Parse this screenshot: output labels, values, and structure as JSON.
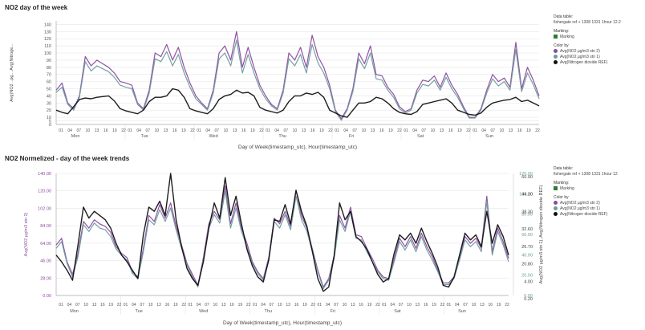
{
  "chart_data": [
    {
      "type": "line",
      "title": "NO2 day of the week",
      "xlabel": "Day of Week(timestamp_utc), Hour(timestamp_utc)",
      "ylabel": "Avg(NO2 ..pg... Avg(Nitroge...",
      "ylim": [
        0,
        145
      ],
      "yticks": [
        0,
        5,
        10,
        20,
        30,
        40,
        50,
        60,
        70,
        80,
        90,
        100,
        110,
        120,
        130,
        140
      ],
      "days": [
        "Mon",
        "Tue",
        "Wed",
        "Thu",
        "Fri",
        "Sat",
        "Sun"
      ],
      "hour_ticks": [
        "01",
        "04",
        "07",
        "10",
        "13",
        "16",
        "19",
        "22"
      ],
      "series": [
        {
          "name": "Avg(NO2  µg/m3 stn 2)",
          "color": "#8a4a9e",
          "values": [
            48,
            58,
            30,
            22,
            40,
            95,
            82,
            90,
            85,
            80,
            72,
            60,
            58,
            55,
            30,
            22,
            48,
            100,
            95,
            112,
            90,
            108,
            80,
            58,
            40,
            30,
            22,
            48,
            100,
            110,
            90,
            130,
            80,
            108,
            80,
            55,
            40,
            28,
            22,
            48,
            100,
            90,
            108,
            80,
            125,
            95,
            80,
            55,
            20,
            8,
            22,
            50,
            100,
            85,
            110,
            70,
            68,
            52,
            42,
            25,
            18,
            22,
            48,
            62,
            60,
            68,
            52,
            72,
            55,
            42,
            25,
            10,
            10,
            22,
            48,
            70,
            60,
            65,
            52,
            115,
            50,
            80,
            62,
            40
          ]
        },
        {
          "name": "Avg(NO2  µg/m3 stn 1)",
          "color": "#6f9a9e",
          "values": [
            45,
            52,
            28,
            20,
            38,
            88,
            75,
            82,
            78,
            74,
            66,
            55,
            52,
            50,
            28,
            20,
            44,
            92,
            88,
            102,
            82,
            98,
            72,
            52,
            36,
            28,
            20,
            44,
            92,
            100,
            82,
            118,
            72,
            98,
            72,
            50,
            36,
            26,
            20,
            44,
            92,
            82,
            98,
            72,
            112,
            86,
            72,
            50,
            18,
            6,
            20,
            46,
            92,
            78,
            100,
            64,
            62,
            48,
            38,
            22,
            16,
            20,
            44,
            56,
            54,
            62,
            48,
            66,
            50,
            38,
            22,
            9,
            9,
            20,
            44,
            64,
            54,
            60,
            48,
            105,
            46,
            72,
            56,
            36
          ]
        },
        {
          "name": "Avg(Nitrogen dioxide REF)",
          "color": "#111111",
          "values": [
            20,
            17,
            15,
            25,
            35,
            37,
            36,
            38,
            39,
            40,
            33,
            22,
            19,
            17,
            15,
            20,
            32,
            38,
            38,
            40,
            50,
            48,
            38,
            22,
            19,
            17,
            15,
            22,
            35,
            40,
            42,
            48,
            44,
            45,
            40,
            24,
            20,
            18,
            16,
            20,
            32,
            40,
            40,
            44,
            42,
            45,
            38,
            20,
            16,
            12,
            10,
            20,
            30,
            30,
            32,
            38,
            36,
            30,
            22,
            17,
            15,
            14,
            18,
            28,
            30,
            32,
            34,
            36,
            30,
            20,
            17,
            14,
            13,
            16,
            24,
            30,
            32,
            34,
            35,
            38,
            32,
            34,
            30,
            26
          ]
        }
      ]
    },
    {
      "type": "line",
      "title": "NO2 Normelized - day of the week trends",
      "xlabel": "Day of Week(timestamp_utc), Hour(timestamp_utc)",
      "ylabel": "Avg(NO2  µg/m3 stn 2)",
      "y2label": "Avg(NO2  µg/m3 stn 1), Avg(Nitrogen dioxide REF)",
      "ylim": [
        0,
        145
      ],
      "yticks": [
        "0.00",
        "28.00",
        "46.00",
        "64.00",
        "84.00",
        "102.00",
        "120.00",
        "140.00"
      ],
      "y2ticks_outer": [
        "0.00",
        "20.00",
        "40.00",
        "60.00",
        "80.00",
        "100.00",
        "120.00"
      ],
      "y2ticks_inner": [
        "0.20",
        "4.00",
        "20.80",
        "26.70",
        "32.60",
        "38.30",
        "44.20",
        "60.00"
      ],
      "days": [
        "Mon",
        "Tue",
        "Wed",
        "Thu",
        "Fri",
        "Sat",
        "Sun"
      ],
      "hour_ticks": [
        "01",
        "04",
        "07",
        "10",
        "13",
        "16",
        "19",
        "22"
      ],
      "series": [
        {
          "name": "Avg(NO2  µg/m3 stn 2)",
          "color": "#8a4a9e",
          "values": [
            60,
            68,
            40,
            25,
            50,
            88,
            80,
            90,
            85,
            82,
            75,
            58,
            50,
            45,
            28,
            22,
            56,
            95,
            88,
            108,
            92,
            110,
            82,
            60,
            38,
            25,
            12,
            45,
            85,
            100,
            90,
            130,
            85,
            110,
            80,
            62,
            40,
            28,
            20,
            45,
            92,
            85,
            100,
            82,
            125,
            95,
            80,
            55,
            30,
            10,
            20,
            48,
            95,
            80,
            105,
            72,
            70,
            56,
            44,
            30,
            22,
            20,
            44,
            68,
            58,
            70,
            56,
            74,
            58,
            46,
            30,
            15,
            15,
            22,
            45,
            70,
            62,
            68,
            56,
            118,
            52,
            80,
            64,
            44
          ]
        },
        {
          "name": "Avg(NO2  µg/m3 stn 1)",
          "color": "#6f9a9e",
          "values": [
            56,
            64,
            38,
            22,
            46,
            84,
            76,
            86,
            80,
            78,
            70,
            55,
            48,
            42,
            26,
            20,
            52,
            90,
            84,
            102,
            88,
            104,
            78,
            56,
            36,
            22,
            10,
            42,
            80,
            96,
            86,
            124,
            80,
            104,
            76,
            58,
            38,
            26,
            18,
            42,
            88,
            80,
            96,
            78,
            118,
            90,
            76,
            52,
            28,
            8,
            18,
            44,
            90,
            76,
            100,
            68,
            66,
            52,
            40,
            28,
            20,
            18,
            40,
            64,
            54,
            66,
            52,
            70,
            54,
            42,
            28,
            13,
            13,
            20,
            42,
            66,
            58,
            64,
            52,
            112,
            48,
            76,
            60,
            40
          ]
        },
        {
          "name": "Avg(Nitrogen dioxide REF)",
          "color": "#111111",
          "values": [
            48,
            40,
            30,
            18,
            60,
            105,
            92,
            100,
            95,
            90,
            80,
            62,
            48,
            40,
            30,
            20,
            72,
            105,
            100,
            112,
            95,
            145,
            90,
            58,
            32,
            20,
            12,
            40,
            80,
            110,
            92,
            140,
            95,
            118,
            85,
            55,
            35,
            22,
            16,
            42,
            90,
            88,
            108,
            85,
            125,
            100,
            82,
            52,
            20,
            5,
            10,
            48,
            110,
            90,
            100,
            70,
            64,
            55,
            40,
            25,
            16,
            20,
            50,
            72,
            66,
            74,
            62,
            80,
            64,
            50,
            34,
            12,
            10,
            22,
            48,
            74,
            66,
            72,
            58,
            100,
            62,
            84,
            70,
            48
          ]
        }
      ]
    }
  ],
  "legend_top": {
    "data_table_label": "Data table:",
    "data_table_value": "fishergate ref + 1308 1331 1hour 12.2",
    "marking_label": "Marking:",
    "marking_value": "Marking",
    "color_by_label": "Color by",
    "items": [
      "Avg(NO2  µg/m3 stn 2)",
      "Avg(NO2  µg/m3 stn 1)",
      "Avg(Nitrogen dioxide REF)"
    ]
  },
  "legend_bot": {
    "data_table_label": "Data table:",
    "data_table_value": "fishergate ref + 1308 1331 1hour 12",
    "marking_label": "Marking:",
    "marking_value": "Marking",
    "color_by_label": "Color by",
    "items": [
      "Avg(NO2  µg/m3 stn 2)",
      "Avg(NO2  µg/m3 stn 1)",
      "Avg(Nitrogen dioxide REF)"
    ]
  },
  "colors": {
    "purple": "#8a4a9e",
    "teal": "#6f9a9e",
    "black": "#111111",
    "marking": "#2e7d32",
    "purple_axis": "#8a4a9e",
    "teal_axis": "#6f9a9e"
  }
}
